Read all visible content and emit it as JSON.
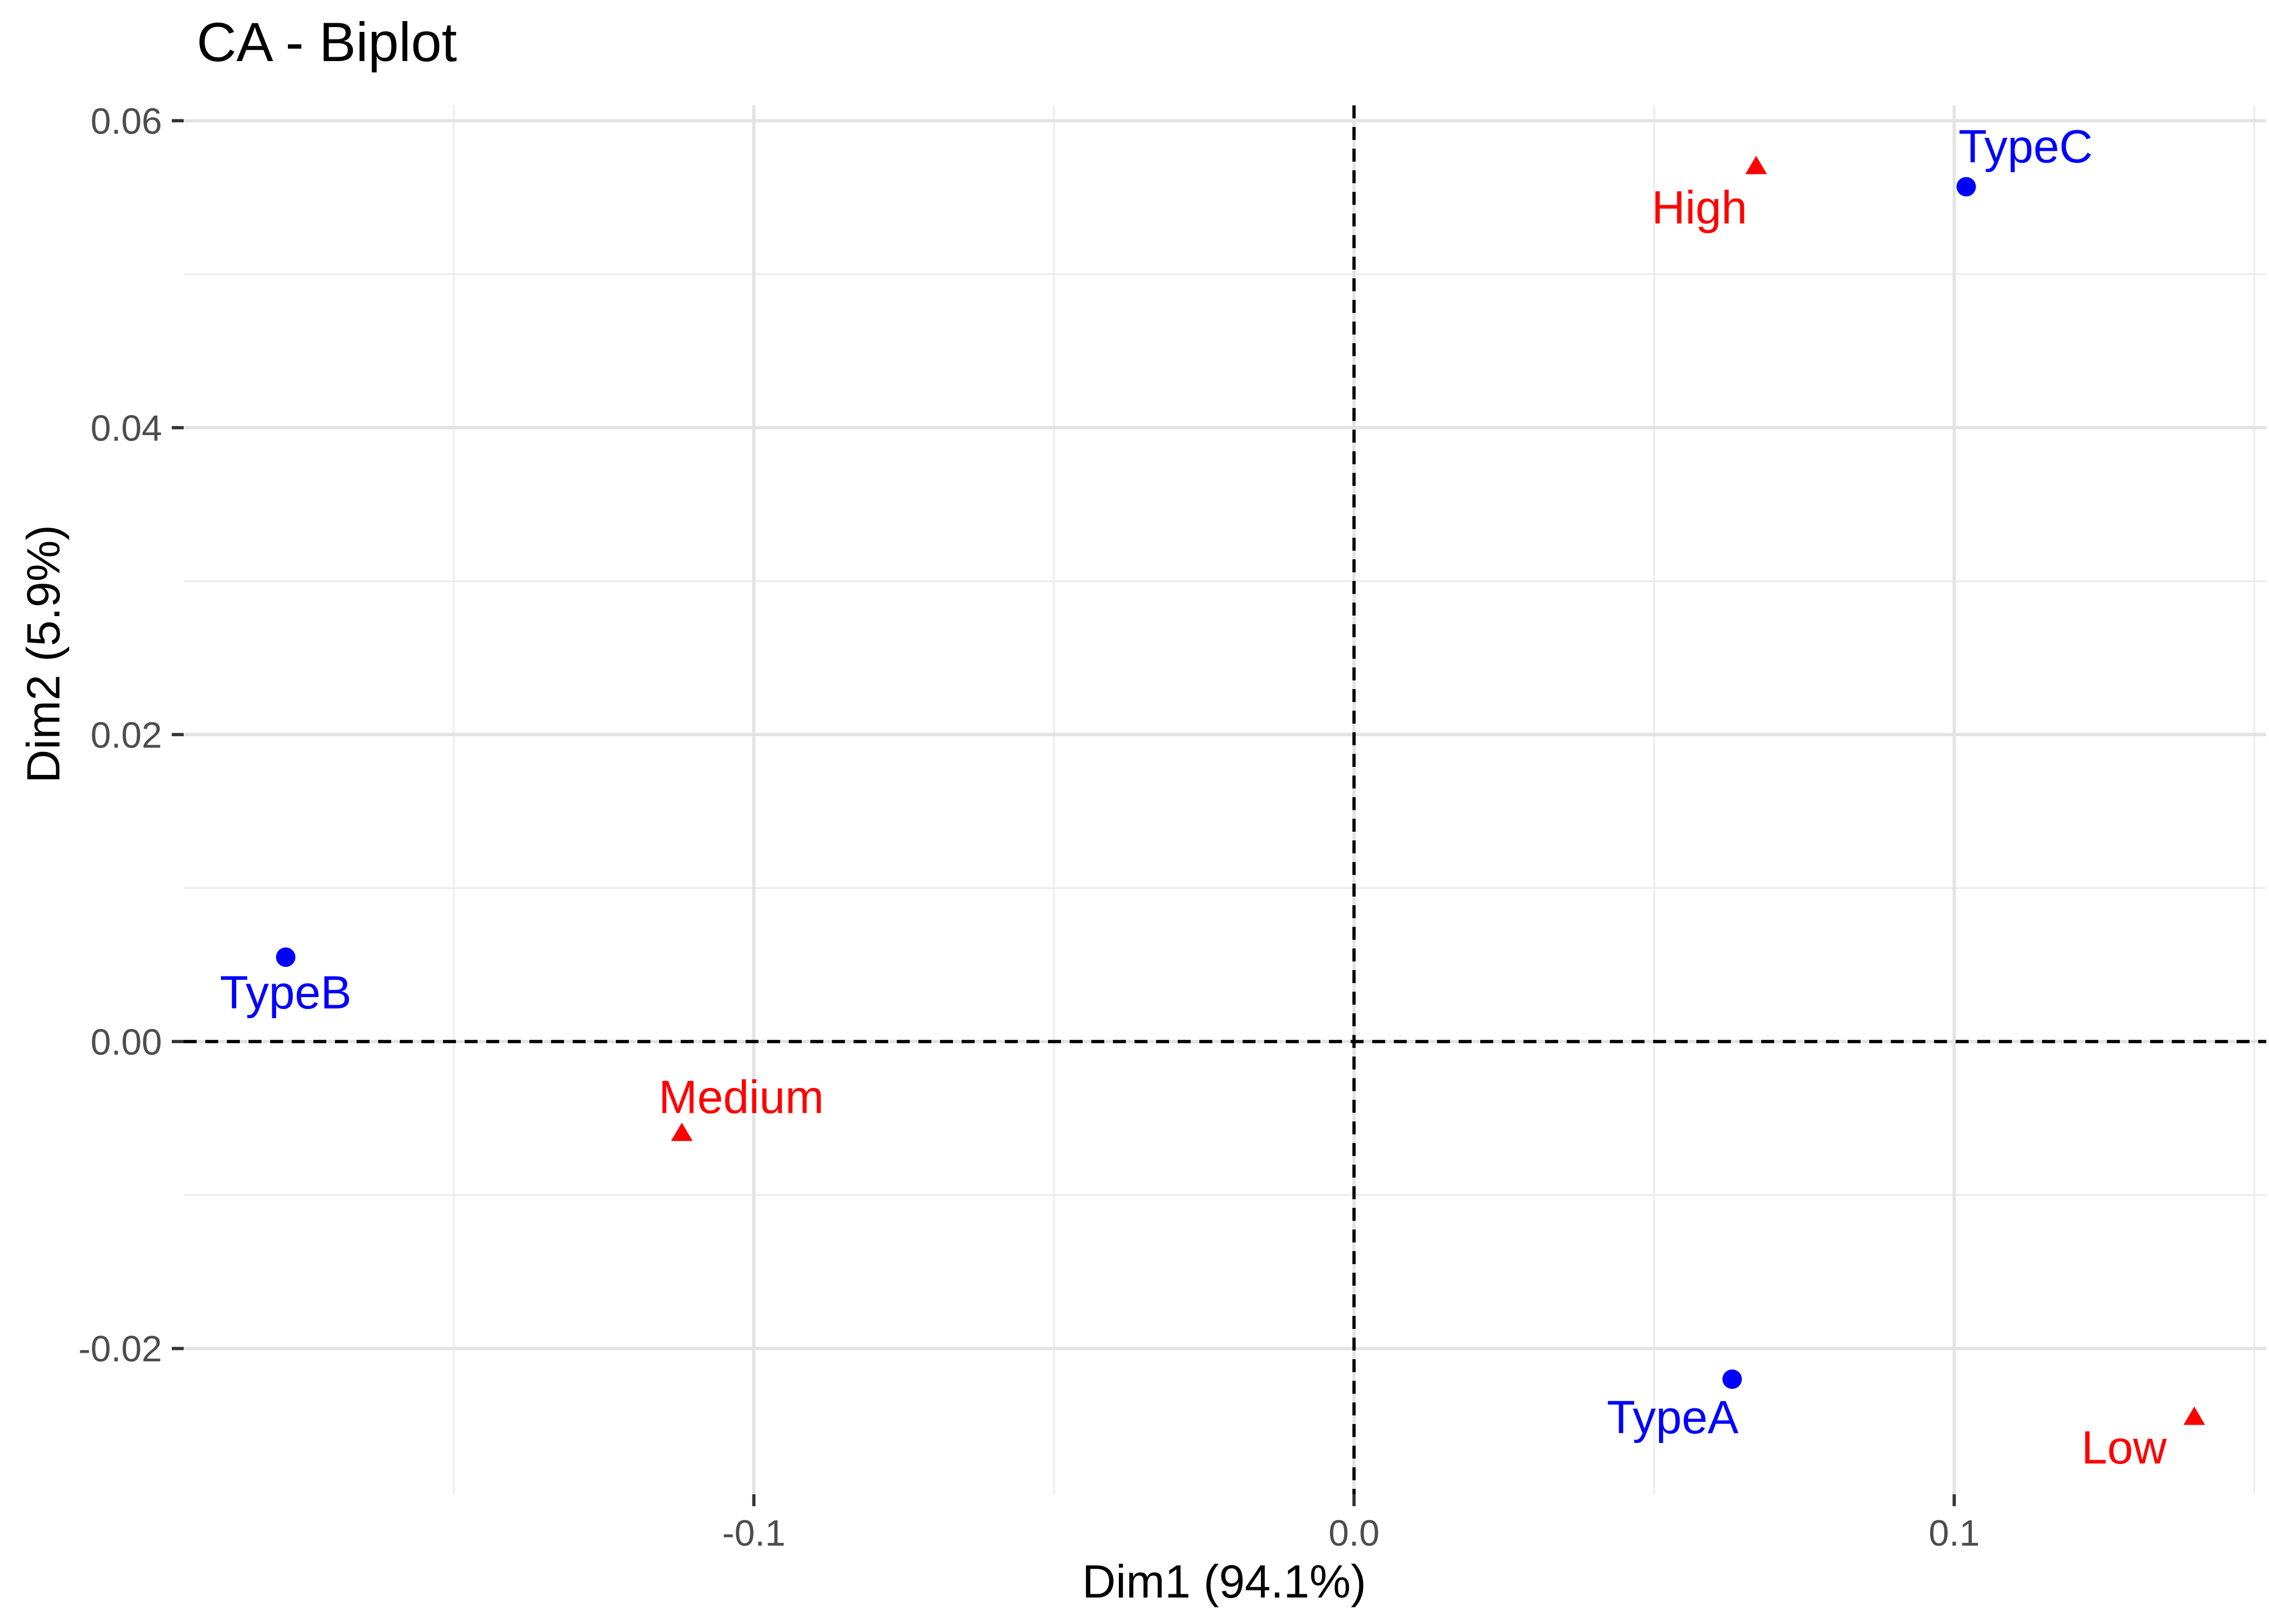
{
  "chart_data": {
    "type": "scatter",
    "title": "CA - Biplot",
    "xlabel": "Dim1 (94.1%)",
    "ylabel": "Dim2 (5.9%)",
    "xlim": [
      -0.195,
      0.152
    ],
    "ylim": [
      -0.0295,
      0.061
    ],
    "x_ticks": [
      -0.1,
      0.0,
      0.1
    ],
    "x_tick_labels": [
      "-0.1",
      "0.0",
      "0.1"
    ],
    "y_ticks": [
      -0.02,
      0.0,
      0.02,
      0.04,
      0.06
    ],
    "y_tick_labels": [
      "-0.02",
      "0.00",
      "0.02",
      "0.04",
      "0.06"
    ],
    "grid": true,
    "reference_lines": {
      "x": 0,
      "y": 0,
      "style": "dashed"
    },
    "series": [
      {
        "group": "rows",
        "color": "#0000ff",
        "marker": "circle",
        "points": [
          {
            "label": "TypeA",
            "x": 0.063,
            "y": -0.022
          },
          {
            "label": "TypeB",
            "x": -0.178,
            "y": 0.0055
          },
          {
            "label": "TypeC",
            "x": 0.102,
            "y": 0.0557
          }
        ]
      },
      {
        "group": "columns",
        "color": "#ff0000",
        "marker": "triangle",
        "points": [
          {
            "label": "High",
            "x": 0.067,
            "y": 0.057
          },
          {
            "label": "Medium",
            "x": -0.112,
            "y": -0.006
          },
          {
            "label": "Low",
            "x": 0.14,
            "y": -0.0245
          }
        ]
      }
    ]
  }
}
